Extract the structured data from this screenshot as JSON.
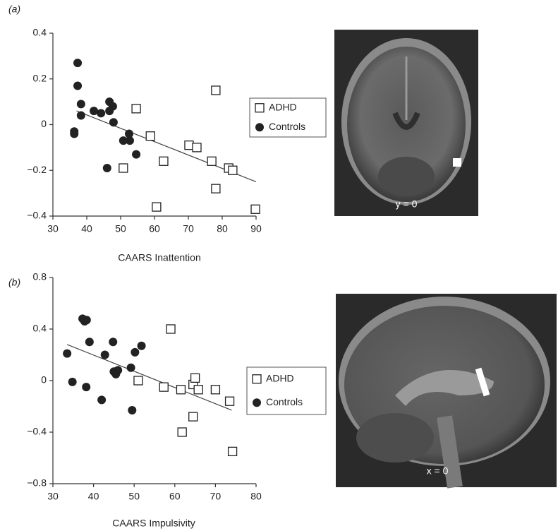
{
  "chart_data": [
    {
      "type": "scatter",
      "panel_label": "(a)",
      "x_label": "CAARS Inattention",
      "image_label": "y = 0",
      "xlim": [
        30,
        90
      ],
      "ylim": [
        -0.4,
        0.4
      ],
      "xticks": [
        30,
        40,
        50,
        60,
        70,
        80,
        90
      ],
      "yticks": [
        {
          "value": -0.4,
          "label": "−0.4"
        },
        {
          "value": -0.2,
          "label": "−0.2"
        },
        0,
        0.2,
        0.4
      ],
      "legend": "right",
      "series": [
        {
          "name": "ADHD",
          "color": "#222222",
          "marker": "square",
          "x": [
            54.6,
            78.1,
            58.8,
            50.8,
            62.7,
            70.2,
            72.5,
            76.9,
            81.9,
            83.1,
            78.1,
            60.6,
            89.8
          ],
          "y": [
            0.07,
            0.15,
            -0.05,
            -0.19,
            -0.16,
            -0.09,
            -0.1,
            -0.16,
            -0.19,
            -0.2,
            -0.28,
            -0.36,
            -0.37
          ]
        },
        {
          "name": "Controls",
          "color": "#222222",
          "marker": "circle",
          "x": [
            37.3,
            37.3,
            38.3,
            38.3,
            36.3,
            36.3,
            42.1,
            44.2,
            46.7,
            46.7,
            47.7,
            47.9,
            50.8,
            52.5,
            52.7,
            54.6,
            46.0
          ],
          "y": [
            0.27,
            0.17,
            0.09,
            0.04,
            -0.03,
            -0.04,
            0.06,
            0.05,
            0.1,
            0.06,
            0.08,
            0.01,
            -0.07,
            -0.04,
            -0.07,
            -0.13,
            -0.19
          ]
        }
      ],
      "trend_line": {
        "x": [
          37,
          90
        ],
        "y": [
          0.06,
          -0.25
        ]
      }
    },
    {
      "type": "scatter",
      "panel_label": "(b)",
      "x_label": "CAARS Impulsivity",
      "image_label": "x = 0",
      "xlim": [
        30,
        80
      ],
      "ylim": [
        -0.8,
        0.8
      ],
      "xticks": [
        30,
        40,
        50,
        60,
        70,
        80
      ],
      "yticks": [
        {
          "value": -0.8,
          "label": "−0.8"
        },
        {
          "value": -0.4,
          "label": "−0.4"
        },
        0,
        0.4,
        0.8
      ],
      "legend": "right",
      "series": [
        {
          "name": "ADHD",
          "color": "#222222",
          "marker": "square",
          "x": [
            59,
            51,
            57.3,
            61.5,
            64.5,
            65,
            65.8,
            70,
            73.5,
            64.5,
            61.8,
            74.2
          ],
          "y": [
            0.4,
            0,
            -0.05,
            -0.07,
            -0.03,
            0.02,
            -0.07,
            -0.07,
            -0.16,
            -0.28,
            -0.4,
            -0.55
          ]
        },
        {
          "name": "Controls",
          "color": "#222222",
          "marker": "circle",
          "x": [
            33.5,
            34.8,
            37.3,
            37.8,
            38.3,
            38.2,
            39,
            42,
            42.8,
            44.8,
            45,
            45.5,
            46,
            49.2,
            49.5,
            50.2,
            51.8
          ],
          "y": [
            0.21,
            -0.01,
            0.48,
            0.46,
            0.47,
            -0.05,
            0.3,
            -0.15,
            0.2,
            0.3,
            0.07,
            0.05,
            0.08,
            0.1,
            -0.23,
            0.22,
            0.27
          ]
        }
      ],
      "trend_line": {
        "x": [
          33.5,
          74
        ],
        "y": [
          0.28,
          -0.23
        ]
      }
    }
  ]
}
